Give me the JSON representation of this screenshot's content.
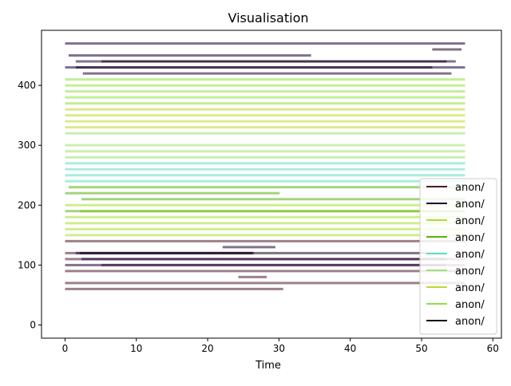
{
  "chart_data": {
    "type": "line",
    "title": "Visualisation",
    "xlabel": "Time",
    "ylabel": "",
    "xlim": [
      -3.3,
      61.2
    ],
    "ylim": [
      -22,
      492
    ],
    "xticks": [
      0,
      10,
      20,
      30,
      40,
      50,
      60
    ],
    "yticks": [
      0,
      100,
      200,
      300,
      400
    ],
    "grid": false,
    "legend_position": "lower-right",
    "series": [
      {
        "name": "anon/",
        "color": "#4a1a2c",
        "segments": [
          [
            0,
            30.6,
            60
          ],
          [
            0,
            56.1,
            70
          ],
          [
            24.3,
            28.3,
            80
          ],
          [
            0,
            56.1,
            90
          ],
          [
            5.1,
            56.1,
            100
          ],
          [
            0,
            56.1,
            110
          ],
          [
            0,
            26.5,
            120
          ],
          [
            0,
            56.1,
            140
          ]
        ]
      },
      {
        "name": "anon/",
        "color": "#1a0033",
        "segments": [
          [
            0,
            53.5,
            100
          ],
          [
            2.3,
            53.5,
            110
          ],
          [
            1.5,
            26.3,
            120
          ],
          [
            22.1,
            29.5,
            130
          ],
          [
            2.5,
            54.2,
            420
          ],
          [
            0,
            56.1,
            430
          ],
          [
            1.5,
            54.8,
            440
          ],
          [
            0.5,
            34.5,
            450
          ],
          [
            0,
            56.1,
            470
          ]
        ]
      },
      {
        "name": "anon/",
        "color": "#a8e030",
        "segments": [
          [
            0,
            56.1,
            150
          ],
          [
            0,
            56.1,
            160
          ],
          [
            0,
            56.1,
            170
          ],
          [
            0,
            56.1,
            180
          ],
          [
            2.1,
            56.1,
            190
          ],
          [
            0,
            56.1,
            200
          ]
        ]
      },
      {
        "name": "anon/",
        "color": "#5ab010",
        "segments": [
          [
            0,
            30.1,
            220
          ],
          [
            2.3,
            56.1,
            210
          ],
          [
            0.5,
            56.1,
            230
          ],
          [
            0,
            56.1,
            190
          ]
        ]
      },
      {
        "name": "anon/",
        "color": "#60e0c0",
        "segments": [
          [
            0,
            56.1,
            240
          ],
          [
            0,
            56.1,
            250
          ],
          [
            0,
            56.1,
            260
          ],
          [
            0,
            56.1,
            270
          ]
        ]
      },
      {
        "name": "anon/",
        "color": "#a0e070",
        "segments": [
          [
            0,
            56.1,
            280
          ],
          [
            0,
            56.1,
            290
          ],
          [
            0,
            56.1,
            300
          ],
          [
            0,
            56.1,
            320
          ]
        ]
      },
      {
        "name": "anon/",
        "color": "#c0d830",
        "segments": [
          [
            0,
            56.1,
            330
          ],
          [
            0,
            56.1,
            340
          ],
          [
            0,
            56.1,
            350
          ],
          [
            0,
            56.1,
            360
          ]
        ]
      },
      {
        "name": "anon/",
        "color": "#90e040",
        "segments": [
          [
            0,
            56.1,
            370
          ],
          [
            0,
            56.1,
            380
          ],
          [
            0,
            56.1,
            390
          ],
          [
            0,
            56.1,
            400
          ],
          [
            0,
            56.1,
            410
          ]
        ]
      },
      {
        "name": "anon/",
        "color": "#140018",
        "segments": [
          [
            51.5,
            55.6,
            460
          ],
          [
            2.1,
            53.2,
            120
          ],
          [
            5.1,
            53.5,
            440
          ],
          [
            1.5,
            51.5,
            430
          ]
        ]
      }
    ]
  }
}
